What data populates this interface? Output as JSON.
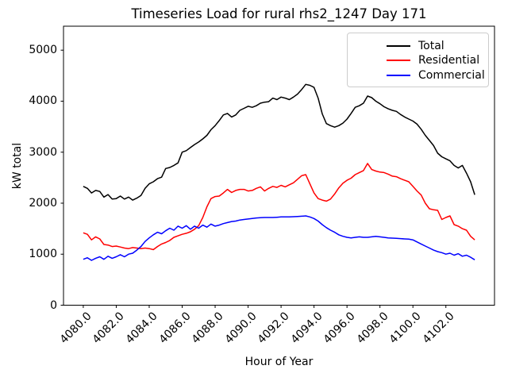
{
  "chart_data": {
    "type": "line",
    "title": "Timeseries Load for rural rhs2_1247  Day 171",
    "xlabel": "Hour of Year",
    "ylabel": "kW total",
    "xlim": [
      4078.8,
      4104.95
    ],
    "ylim": [
      0,
      5470
    ],
    "xticks": [
      4080,
      4082,
      4084,
      4086,
      4088,
      4090,
      4092,
      4094,
      4096,
      4098,
      4100,
      4102
    ],
    "xtick_labels": [
      "4080.0",
      "4082.0",
      "4084.0",
      "4086.0",
      "4088.0",
      "4090.0",
      "4092.0",
      "4094.0",
      "4096.0",
      "4098.0",
      "4100.0",
      "4102.0"
    ],
    "yticks": [
      0,
      1000,
      2000,
      3000,
      4000,
      5000
    ],
    "ytick_labels": [
      "0",
      "1000",
      "2000",
      "3000",
      "4000",
      "5000"
    ],
    "grid": false,
    "legend_position": "upper right",
    "x_unit": "hour of year, 15-minute intervals",
    "x": [
      4080.0,
      4080.25,
      4080.5,
      4080.75,
      4081.0,
      4081.25,
      4081.5,
      4081.75,
      4082.0,
      4082.25,
      4082.5,
      4082.75,
      4083.0,
      4083.25,
      4083.5,
      4083.75,
      4084.0,
      4084.25,
      4084.5,
      4084.75,
      4085.0,
      4085.25,
      4085.5,
      4085.75,
      4086.0,
      4086.25,
      4086.5,
      4086.75,
      4087.0,
      4087.25,
      4087.5,
      4087.75,
      4088.0,
      4088.25,
      4088.5,
      4088.75,
      4089.0,
      4089.25,
      4089.5,
      4089.75,
      4090.0,
      4090.25,
      4090.5,
      4090.75,
      4091.0,
      4091.25,
      4091.5,
      4091.75,
      4092.0,
      4092.25,
      4092.5,
      4092.75,
      4093.0,
      4093.25,
      4093.5,
      4093.75,
      4094.0,
      4094.25,
      4094.5,
      4094.75,
      4095.0,
      4095.25,
      4095.5,
      4095.75,
      4096.0,
      4096.25,
      4096.5,
      4096.75,
      4097.0,
      4097.25,
      4097.5,
      4097.75,
      4098.0,
      4098.25,
      4098.5,
      4098.75,
      4099.0,
      4099.25,
      4099.5,
      4099.75,
      4100.0,
      4100.25,
      4100.5,
      4100.75,
      4101.0,
      4101.25,
      4101.5,
      4101.75,
      4102.0,
      4102.25,
      4102.5,
      4102.75,
      4103.0,
      4103.25,
      4103.5,
      4103.75
    ],
    "series": [
      {
        "name": "Total",
        "color": "#000000",
        "values": [
          2330,
          2290,
          2200,
          2250,
          2230,
          2120,
          2170,
          2080,
          2090,
          2140,
          2080,
          2120,
          2060,
          2100,
          2150,
          2290,
          2380,
          2420,
          2480,
          2510,
          2680,
          2700,
          2740,
          2790,
          3000,
          3030,
          3090,
          3150,
          3200,
          3260,
          3330,
          3440,
          3520,
          3620,
          3730,
          3760,
          3690,
          3730,
          3820,
          3860,
          3900,
          3880,
          3910,
          3960,
          3980,
          3990,
          4060,
          4030,
          4080,
          4060,
          4030,
          4080,
          4140,
          4230,
          4330,
          4310,
          4270,
          4060,
          3750,
          3560,
          3520,
          3490,
          3520,
          3570,
          3650,
          3760,
          3880,
          3910,
          3960,
          4100,
          4070,
          4000,
          3950,
          3890,
          3850,
          3820,
          3800,
          3740,
          3690,
          3650,
          3610,
          3550,
          3450,
          3330,
          3230,
          3130,
          2980,
          2910,
          2870,
          2830,
          2740,
          2690,
          2740,
          2590,
          2420,
          2165
        ]
      },
      {
        "name": "Residential",
        "color": "#ff0000",
        "values": [
          1420,
          1390,
          1280,
          1340,
          1300,
          1190,
          1180,
          1150,
          1160,
          1140,
          1120,
          1110,
          1130,
          1120,
          1110,
          1120,
          1110,
          1090,
          1150,
          1200,
          1230,
          1270,
          1330,
          1360,
          1390,
          1410,
          1440,
          1490,
          1560,
          1720,
          1930,
          2090,
          2130,
          2140,
          2200,
          2270,
          2210,
          2250,
          2270,
          2270,
          2240,
          2250,
          2290,
          2320,
          2240,
          2290,
          2330,
          2310,
          2350,
          2320,
          2360,
          2400,
          2470,
          2540,
          2560,
          2380,
          2200,
          2090,
          2060,
          2040,
          2080,
          2180,
          2300,
          2390,
          2450,
          2490,
          2560,
          2600,
          2640,
          2780,
          2660,
          2630,
          2610,
          2600,
          2570,
          2530,
          2520,
          2480,
          2450,
          2420,
          2330,
          2240,
          2160,
          2000,
          1890,
          1870,
          1860,
          1680,
          1720,
          1750,
          1580,
          1550,
          1500,
          1470,
          1350,
          1280
        ]
      },
      {
        "name": "Commercial",
        "color": "#0000ff",
        "values": [
          900,
          930,
          880,
          920,
          950,
          900,
          960,
          920,
          950,
          990,
          950,
          1000,
          1020,
          1080,
          1150,
          1250,
          1320,
          1380,
          1430,
          1400,
          1460,
          1510,
          1470,
          1550,
          1510,
          1560,
          1490,
          1550,
          1510,
          1570,
          1530,
          1590,
          1550,
          1570,
          1600,
          1620,
          1640,
          1650,
          1670,
          1680,
          1690,
          1700,
          1710,
          1715,
          1720,
          1720,
          1720,
          1725,
          1730,
          1730,
          1730,
          1735,
          1740,
          1745,
          1750,
          1730,
          1700,
          1650,
          1580,
          1520,
          1470,
          1430,
          1380,
          1350,
          1330,
          1320,
          1330,
          1340,
          1330,
          1330,
          1340,
          1350,
          1340,
          1330,
          1320,
          1315,
          1310,
          1305,
          1300,
          1295,
          1280,
          1240,
          1200,
          1160,
          1120,
          1080,
          1050,
          1030,
          1000,
          1020,
          980,
          1010,
          960,
          980,
          940,
          890
        ]
      }
    ]
  }
}
